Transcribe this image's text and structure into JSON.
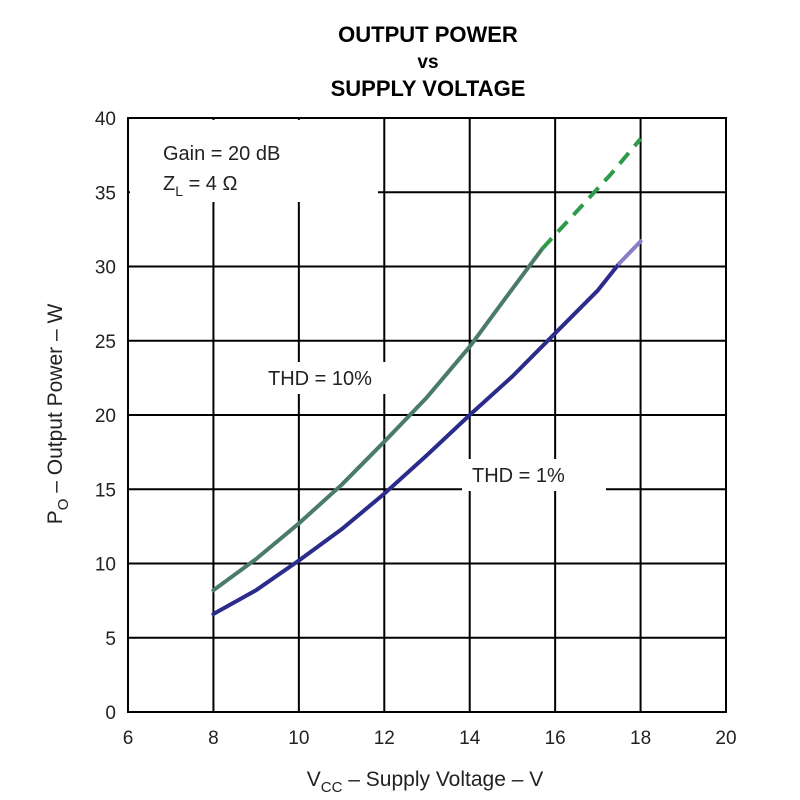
{
  "chart_data": {
    "type": "line",
    "title": [
      "OUTPUT POWER",
      "vs",
      "SUPPLY VOLTAGE"
    ],
    "xlabel": "V",
    "xlabel_sub": "CC",
    "xlabel_rest": " – Supply Voltage – V",
    "ylabel": "P",
    "ylabel_sub": "O",
    "ylabel_rest": " – Output Power – W",
    "xlim": [
      6,
      20
    ],
    "ylim": [
      0,
      40
    ],
    "x_ticks": [
      6,
      8,
      10,
      12,
      14,
      16,
      18,
      20
    ],
    "y_ticks": [
      0,
      5,
      10,
      15,
      20,
      25,
      30,
      35,
      40
    ],
    "grid": true,
    "annotations": {
      "gain": "Gain = 20 dB",
      "zl_main": "Z",
      "zl_sub": "L",
      "zl_rest": " = 4 Ω"
    },
    "series": [
      {
        "name": "THD = 10%",
        "color": "#4a7b66",
        "dashed_color": "#2e9b4a",
        "x": [
          8,
          9,
          10,
          11,
          12,
          13,
          14,
          15,
          15.7
        ],
        "y": [
          8.2,
          10.3,
          12.7,
          15.3,
          18.2,
          21.2,
          24.6,
          28.5,
          31.2
        ],
        "dashed_x": [
          15.7,
          16.5,
          17.3,
          18
        ],
        "dashed_y": [
          31.2,
          33.7,
          36.2,
          38.6
        ]
      },
      {
        "name": "THD = 1%",
        "color": "#2b2b8c",
        "faded_color": "#8a7fc7",
        "x": [
          8,
          9,
          10,
          11,
          12,
          13,
          14,
          15,
          16,
          17,
          17.5
        ],
        "y": [
          6.6,
          8.2,
          10.2,
          12.3,
          14.7,
          17.3,
          20.0,
          22.6,
          25.5,
          28.4,
          30.2
        ],
        "faded_x": [
          17.5,
          18
        ],
        "faded_y": [
          30.2,
          31.7
        ]
      }
    ]
  }
}
